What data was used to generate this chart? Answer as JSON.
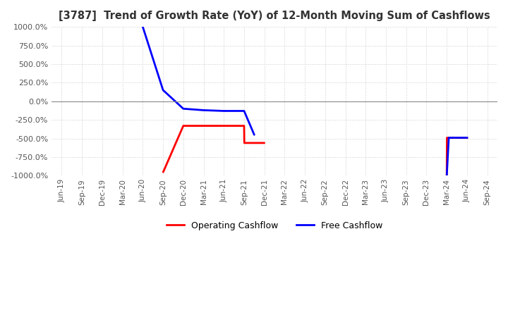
{
  "title": "[3787]  Trend of Growth Rate (YoY) of 12-Month Moving Sum of Cashflows",
  "ylim": [
    -1000,
    1000
  ],
  "yticks": [
    -1000,
    -750,
    -500,
    -250,
    0,
    250,
    500,
    750,
    1000
  ],
  "ytick_labels": [
    "-1000.0%",
    "-750.0%",
    "-500.0%",
    "-250.0%",
    "0.0%",
    "250.0%",
    "500.0%",
    "750.0%",
    "1000.0%"
  ],
  "background_color": "#ffffff",
  "grid_color": "#cccccc",
  "operating_color": "#ff0000",
  "free_color": "#0000ff",
  "x_labels": [
    "Jun-19",
    "Sep-19",
    "Dec-19",
    "Mar-20",
    "Jun-20",
    "Sep-20",
    "Dec-20",
    "Mar-21",
    "Jun-21",
    "Sep-21",
    "Dec-21",
    "Mar-22",
    "Jun-22",
    "Sep-22",
    "Dec-22",
    "Mar-23",
    "Jun-23",
    "Sep-23",
    "Dec-23",
    "Mar-24",
    "Jun-24",
    "Sep-24"
  ],
  "operating_cashflow_x": [
    5,
    5,
    6,
    7,
    8,
    9,
    9,
    10,
    19,
    19,
    20
  ],
  "operating_cashflow_y": [
    -950,
    -950,
    -330,
    -330,
    -330,
    -330,
    -560,
    -560,
    -1000,
    -490,
    -490
  ],
  "free_cashflow_x": [
    4,
    5,
    6,
    7,
    8,
    8,
    9,
    9,
    18,
    19,
    20
  ],
  "free_cashflow_y": [
    1000,
    150,
    -100,
    -120,
    -130,
    -130,
    -130,
    -450,
    -1000,
    -490,
    -490
  ]
}
